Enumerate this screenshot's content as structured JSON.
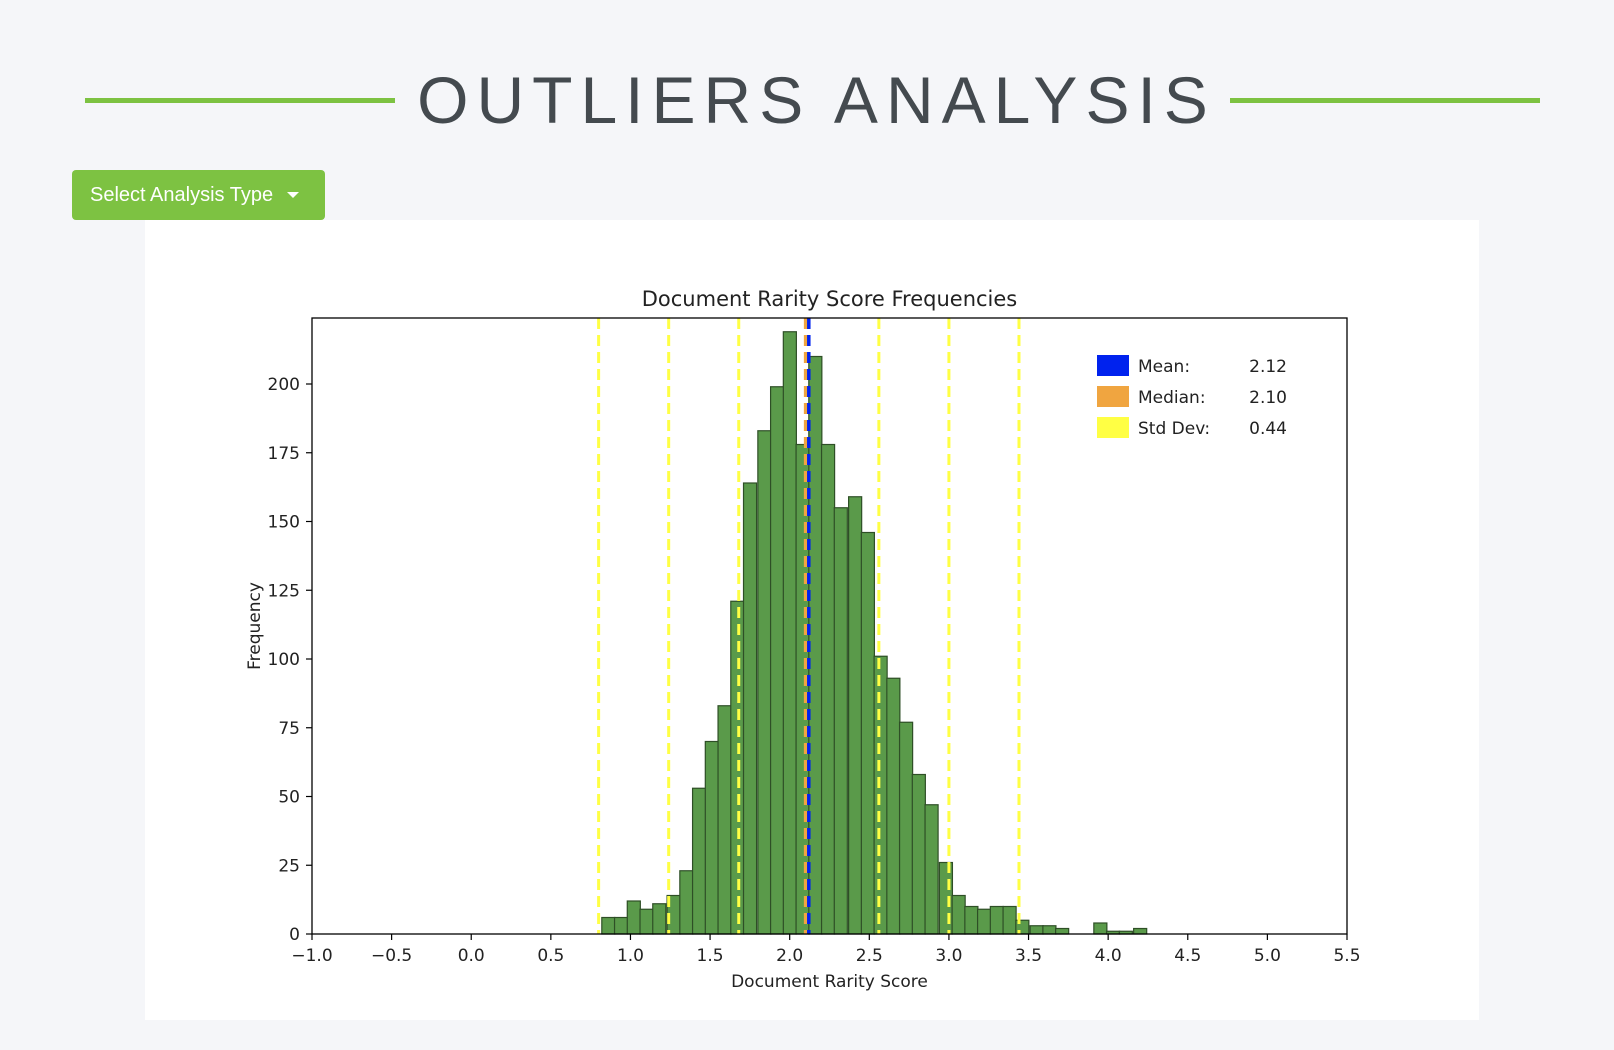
{
  "header": {
    "title": "OUTLIERS ANALYSIS"
  },
  "toolbar": {
    "analysis_type_label": "Select Analysis Type"
  },
  "colors": {
    "accent": "#7dc242",
    "bar_fill": "#5a9a4a",
    "bar_edge": "#2e4f26",
    "mean": "#0022ee",
    "median": "#f0a540",
    "std_dev": "#ffff44"
  },
  "chart_data": {
    "type": "bar",
    "title": "Document Rarity Score Frequencies",
    "xlabel": "Document Rarity Score",
    "ylabel": "Frequency",
    "xlim": [
      -1.0,
      5.5
    ],
    "ylim": [
      0,
      224
    ],
    "xticks": [
      "−1.0",
      "−0.5",
      "0.0",
      "0.5",
      "1.0",
      "1.5",
      "2.0",
      "2.5",
      "3.0",
      "3.5",
      "4.0",
      "4.5",
      "5.0",
      "5.5"
    ],
    "yticks": [
      "0",
      "25",
      "50",
      "75",
      "100",
      "125",
      "150",
      "175",
      "200"
    ],
    "bin_width": 0.082,
    "bins": [
      {
        "x": 0.82,
        "count": 6
      },
      {
        "x": 0.9,
        "count": 6
      },
      {
        "x": 0.98,
        "count": 12
      },
      {
        "x": 1.06,
        "count": 9
      },
      {
        "x": 1.14,
        "count": 11
      },
      {
        "x": 1.23,
        "count": 14
      },
      {
        "x": 1.31,
        "count": 23
      },
      {
        "x": 1.39,
        "count": 53
      },
      {
        "x": 1.47,
        "count": 70
      },
      {
        "x": 1.55,
        "count": 83
      },
      {
        "x": 1.63,
        "count": 121
      },
      {
        "x": 1.71,
        "count": 164
      },
      {
        "x": 1.8,
        "count": 183
      },
      {
        "x": 1.88,
        "count": 199
      },
      {
        "x": 1.96,
        "count": 219
      },
      {
        "x": 2.04,
        "count": 178
      },
      {
        "x": 2.12,
        "count": 210
      },
      {
        "x": 2.2,
        "count": 178
      },
      {
        "x": 2.28,
        "count": 155
      },
      {
        "x": 2.37,
        "count": 159
      },
      {
        "x": 2.45,
        "count": 146
      },
      {
        "x": 2.53,
        "count": 101
      },
      {
        "x": 2.61,
        "count": 93
      },
      {
        "x": 2.69,
        "count": 77
      },
      {
        "x": 2.77,
        "count": 58
      },
      {
        "x": 2.85,
        "count": 47
      },
      {
        "x": 2.94,
        "count": 26
      },
      {
        "x": 3.02,
        "count": 14
      },
      {
        "x": 3.1,
        "count": 10
      },
      {
        "x": 3.18,
        "count": 9
      },
      {
        "x": 3.26,
        "count": 10
      },
      {
        "x": 3.34,
        "count": 10
      },
      {
        "x": 3.42,
        "count": 5
      },
      {
        "x": 3.51,
        "count": 3
      },
      {
        "x": 3.59,
        "count": 3
      },
      {
        "x": 3.67,
        "count": 2
      },
      {
        "x": 3.91,
        "count": 4
      },
      {
        "x": 3.99,
        "count": 1
      },
      {
        "x": 4.07,
        "count": 1
      },
      {
        "x": 4.16,
        "count": 2
      }
    ],
    "vlines": {
      "mean": 2.12,
      "median": 2.1,
      "std_dev": [
        0.8,
        1.24,
        1.68,
        2.56,
        3.0,
        3.44
      ]
    },
    "legend": {
      "position": "top-right",
      "entries": [
        {
          "label": "Mean:",
          "value": "2.12",
          "color": "#0022ee"
        },
        {
          "label": "Median:",
          "value": "2.10",
          "color": "#f0a540"
        },
        {
          "label": "Std Dev:",
          "value": "0.44",
          "color": "#ffff44"
        }
      ]
    },
    "grid": false
  }
}
